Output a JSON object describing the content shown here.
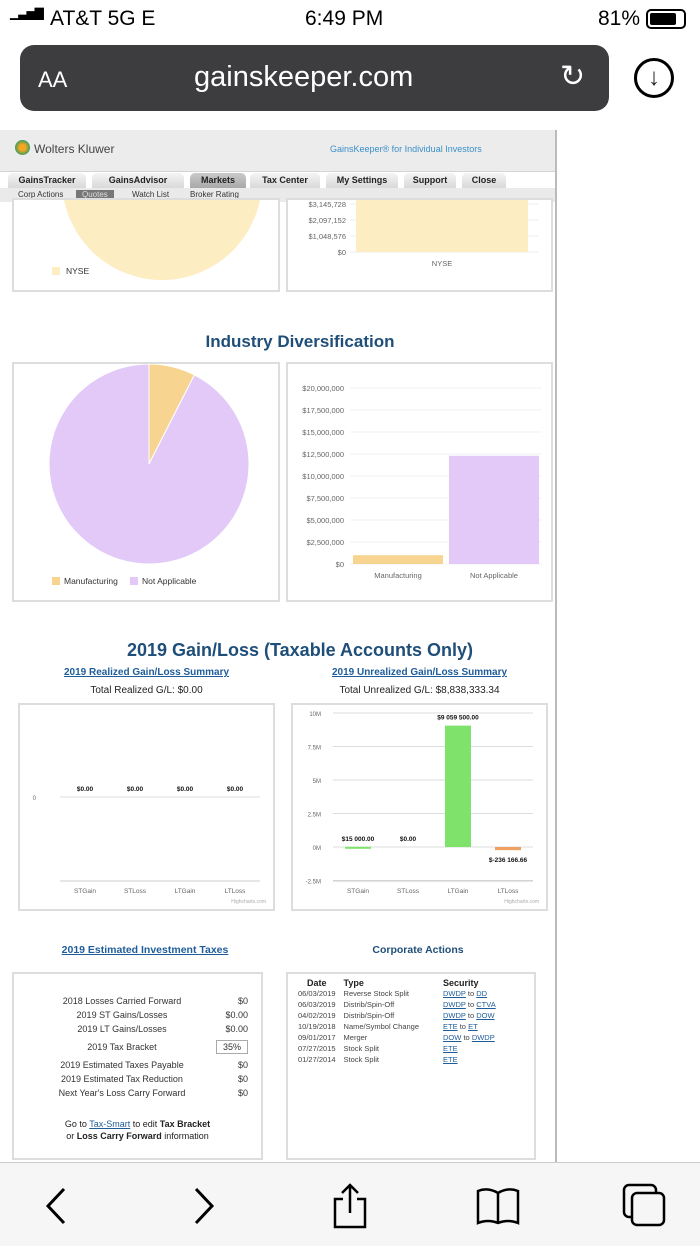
{
  "status": {
    "carrier": "AT&T 5G E",
    "time": "6:49 PM",
    "battery": "81%"
  },
  "browser": {
    "aa": "AA",
    "url": "gainskeeper.com"
  },
  "header": {
    "brand": "Wolters Kluwer",
    "tagline": "GainsKeeper® for Individual Investors"
  },
  "tabs": [
    {
      "label": "GainsTracker"
    },
    {
      "label": "GainsAdvisor"
    },
    {
      "label": "Markets",
      "active": true
    },
    {
      "label": "Tax Center"
    },
    {
      "label": "My Settings"
    },
    {
      "label": "Support"
    },
    {
      "label": "Close"
    }
  ],
  "subnav": [
    {
      "label": "Corp Actions"
    },
    {
      "label": "Quotes",
      "active": true
    },
    {
      "label": "Watch List"
    },
    {
      "label": "Broker Rating"
    }
  ],
  "colors": {
    "manufacturing": "#f7d48f",
    "not_applicable": "#e2c9f7",
    "nyse": "#fdedc2",
    "gain": "#7fe36b",
    "loss": "#f0a060",
    "heading": "#1f4e79"
  },
  "industry": {
    "title": "Industry Diversification"
  },
  "gainloss": {
    "title": "2019 Gain/Loss (Taxable Accounts Only)",
    "realized_link": "2019 Realized Gain/Loss Summary",
    "realized_total": "Total Realized G/L: $0.00",
    "unrealized_link": "2019 Unrealized Gain/Loss Summary",
    "unrealized_total": "Total Unrealized G/L: $8,838,333.34",
    "credit": "Highcharts.com"
  },
  "chart_data": [
    {
      "type": "pie",
      "legend": [
        "NYSE"
      ],
      "values": [
        100
      ]
    },
    {
      "type": "bar",
      "categories": [
        "NYSE"
      ],
      "yticks": [
        "$0",
        "$1,048,576",
        "$2,097,152",
        "$3,145,728"
      ]
    },
    {
      "type": "pie",
      "legend": [
        "Manufacturing",
        "Not Applicable"
      ],
      "values": [
        7.5,
        92.5
      ]
    },
    {
      "type": "bar",
      "categories": [
        "Manufacturing",
        "Not Applicable"
      ],
      "values": [
        1000000,
        12300000
      ],
      "ylim": [
        0,
        20000000
      ],
      "yticks": [
        "$0",
        "$2,500,000",
        "$5,000,000",
        "$7,500,000",
        "$10,000,000",
        "$12,500,000",
        "$15,000,000",
        "$17,500,000",
        "$20,000,000"
      ]
    },
    {
      "type": "bar",
      "categories": [
        "STGain",
        "STLoss",
        "LTGain",
        "LTLoss"
      ],
      "values": [
        0,
        0,
        0,
        0
      ],
      "labels": [
        "$0.00",
        "$0.00",
        "$0.00",
        "$0.00"
      ],
      "yticks": [
        "0"
      ]
    },
    {
      "type": "bar",
      "categories": [
        "STGain",
        "STLoss",
        "LTGain",
        "LTLoss"
      ],
      "values": [
        15000,
        0,
        9059500,
        -236166.66
      ],
      "labels": [
        "$15 000.00",
        "$0.00",
        "$9 059 500.00",
        "$-236 166.66"
      ],
      "ylim": [
        -2500000,
        10000000
      ],
      "yticks": [
        "-2.5M",
        "0M",
        "2.5M",
        "5M",
        "7.5M",
        "10M"
      ]
    }
  ],
  "taxes": {
    "title": "2019 Estimated Investment Taxes",
    "rows": [
      {
        "label": "2018 Losses Carried Forward",
        "value": "$0"
      },
      {
        "label": "2019 ST Gains/Losses",
        "value": "$0.00"
      },
      {
        "label": "2019 LT Gains/Losses",
        "value": "$0.00"
      }
    ],
    "bracket_label": "2019 Tax Bracket",
    "bracket_value": "35%",
    "rows2": [
      {
        "label": "2019 Estimated Taxes Payable",
        "value": "$0"
      },
      {
        "label": "2019 Estimated Tax Reduction",
        "value": "$0"
      },
      {
        "label": "Next Year's Loss Carry Forward",
        "value": "$0"
      }
    ],
    "note_pre": "Go to ",
    "note_link": "Tax-Smart",
    "note_mid": " to edit ",
    "note_b1": "Tax Bracket",
    "note_or": "or ",
    "note_b2": "Loss Carry Forward",
    "note_end": " information"
  },
  "corp": {
    "title": "Corporate Actions",
    "headers": [
      "Date",
      "Type",
      "Security"
    ],
    "rows": [
      {
        "date": "06/03/2019",
        "type": "Reverse Stock Split",
        "from": "DWDP",
        "to": "DD"
      },
      {
        "date": "06/03/2019",
        "type": "Distrib/Spin-Off",
        "from": "DWDP",
        "to": "CTVA"
      },
      {
        "date": "04/02/2019",
        "type": "Distrib/Spin-Off",
        "from": "DWDP",
        "to": "DOW"
      },
      {
        "date": "10/19/2018",
        "type": "Name/Symbol Change",
        "from": "ETE",
        "to": "ET"
      },
      {
        "date": "09/01/2017",
        "type": "Merger",
        "from": "DOW",
        "to": "DWDP"
      },
      {
        "date": "07/27/2015",
        "type": "Stock Split",
        "from": "ETE",
        "to": ""
      },
      {
        "date": "01/27/2014",
        "type": "Stock Split",
        "from": "ETE",
        "to": ""
      }
    ],
    "to_word": "to"
  }
}
